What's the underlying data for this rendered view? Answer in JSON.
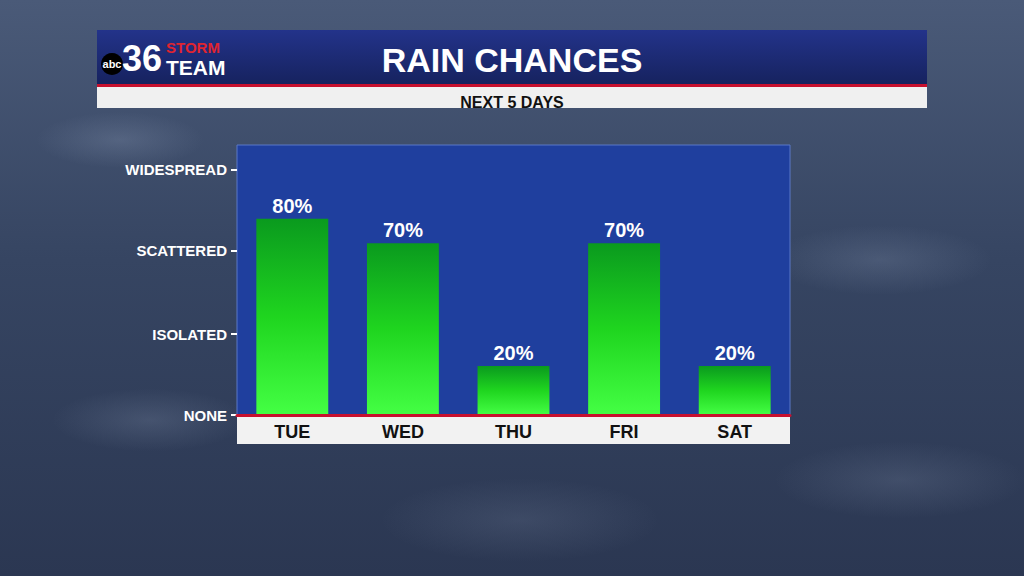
{
  "chart_data": {
    "type": "bar",
    "title": "RAIN CHANCES",
    "subtitle": "NEXT 5 DAYS",
    "annotations": [
      "abc",
      "36",
      "STORM",
      "TEAM"
    ],
    "categories": [
      "TUE",
      "WED",
      "THU",
      "FRI",
      "SAT"
    ],
    "values": [
      80,
      70,
      20,
      70,
      20
    ],
    "value_labels": [
      "80%",
      "70%",
      "20%",
      "70%",
      "20%"
    ],
    "color": "#1fd51f",
    "ylim": [
      0,
      110
    ],
    "yticks": [
      {
        "value": 0,
        "label": "NONE"
      },
      {
        "value": 33,
        "label": "ISOLATED"
      },
      {
        "value": 67,
        "label": "SCATTERED"
      },
      {
        "value": 100,
        "label": "WIDESPREAD"
      }
    ],
    "grid": false,
    "data_labels": true
  }
}
